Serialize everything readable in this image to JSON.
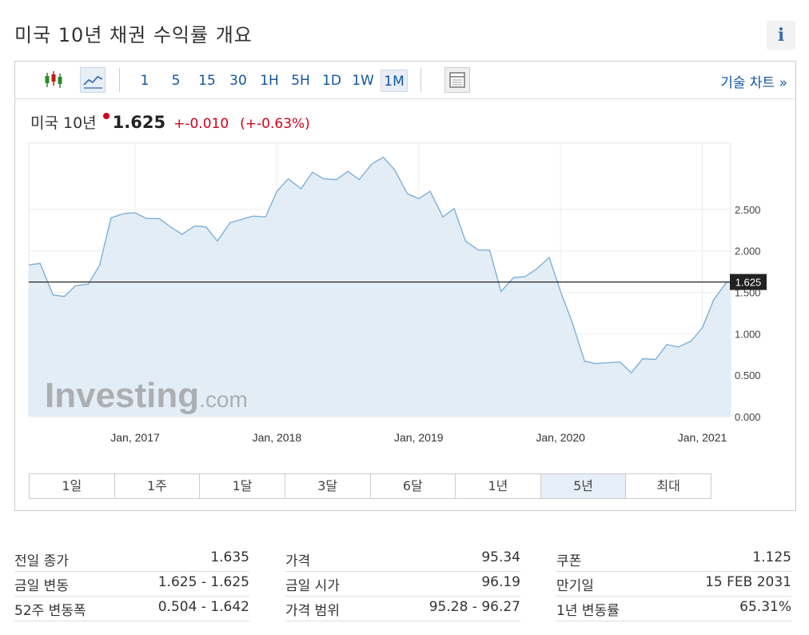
{
  "page": {
    "title": "미국 10년 채권 수익률 개요",
    "info_label": "i"
  },
  "toolbar": {
    "chart_type_icons": [
      "candlestick-icon",
      "area-chart-icon"
    ],
    "intervals": [
      "1",
      "5",
      "15",
      "30",
      "1H",
      "5H",
      "1D",
      "1W",
      "1M"
    ],
    "selected_interval": "1M",
    "layout_icon": "layout-icon",
    "technical_link": "기술 차트 »"
  },
  "quote": {
    "name": "미국 10년",
    "price": "1.625",
    "change": "+-0.010",
    "change_pct": "(+-0.63%)",
    "color_negative": "#d0021b"
  },
  "watermark": {
    "brand": "Investing",
    "suffix": ".com"
  },
  "chart_data": {
    "type": "area",
    "x_tick_labels": [
      "Jan, 2017",
      "Jan, 2018",
      "Jan, 2019",
      "Jan, 2020",
      "Jan, 2021"
    ],
    "x_tick_positions": [
      2017.0,
      2018.0,
      2019.0,
      2020.0,
      2021.0
    ],
    "y_tick_labels": [
      "0.000",
      "0.500",
      "1.000",
      "1.500",
      "2.000",
      "2.500"
    ],
    "y_tick_values": [
      0,
      0.5,
      1.0,
      1.5,
      2.0,
      2.5
    ],
    "ylim": [
      0,
      3.3
    ],
    "xlim": [
      2016.25,
      2021.2
    ],
    "current_price_label": "1.625",
    "current_price": 1.625,
    "line_color": "#7fb0d8",
    "fill_color": "#e3edf6",
    "series": [
      {
        "x": [
          2016.25,
          2016.33,
          2016.42,
          2016.5,
          2016.58,
          2016.67,
          2016.75,
          2016.83,
          2016.92,
          2017.0,
          2017.08,
          2017.17,
          2017.25,
          2017.33,
          2017.42,
          2017.5,
          2017.58,
          2017.67,
          2017.75,
          2017.83,
          2017.92,
          2018.0,
          2018.08,
          2018.17,
          2018.25,
          2018.33,
          2018.42,
          2018.5,
          2018.58,
          2018.67,
          2018.75,
          2018.83,
          2018.92,
          2019.0,
          2019.08,
          2019.17,
          2019.25,
          2019.33,
          2019.42,
          2019.5,
          2019.58,
          2019.67,
          2019.75,
          2019.83,
          2019.92,
          2020.0,
          2020.08,
          2020.17,
          2020.25,
          2020.33,
          2020.42,
          2020.5,
          2020.58,
          2020.67,
          2020.75,
          2020.83,
          2020.92,
          2021.0,
          2021.08,
          2021.17,
          2021.2
        ],
        "y": [
          1.83,
          1.85,
          1.47,
          1.45,
          1.58,
          1.6,
          1.83,
          2.4,
          2.45,
          2.46,
          2.39,
          2.39,
          2.29,
          2.2,
          2.3,
          2.29,
          2.12,
          2.34,
          2.38,
          2.42,
          2.41,
          2.72,
          2.87,
          2.75,
          2.95,
          2.87,
          2.86,
          2.96,
          2.86,
          3.05,
          3.13,
          2.98,
          2.69,
          2.63,
          2.72,
          2.41,
          2.51,
          2.12,
          2.01,
          2.01,
          1.51,
          1.68,
          1.69,
          1.78,
          1.92,
          1.51,
          1.15,
          0.67,
          0.64,
          0.65,
          0.66,
          0.53,
          0.7,
          0.69,
          0.87,
          0.84,
          0.91,
          1.07,
          1.41,
          1.62,
          1.625
        ]
      }
    ]
  },
  "range_tabs": [
    "1일",
    "1주",
    "1달",
    "3달",
    "6달",
    "1년",
    "5년",
    "최대"
  ],
  "selected_range": "5년",
  "stats": {
    "col1": [
      {
        "label": "전일 종가",
        "value": "1.635"
      },
      {
        "label": "금일 변동",
        "value": "1.625 - 1.625"
      },
      {
        "label": "52주 변동폭",
        "value": "0.504 - 1.642"
      }
    ],
    "col2": [
      {
        "label": "가격",
        "value": "95.34"
      },
      {
        "label": "금일 시가",
        "value": "96.19"
      },
      {
        "label": "가격 범위",
        "value": "95.28 - 96.27"
      }
    ],
    "col3": [
      {
        "label": "쿠폰",
        "value": "1.125"
      },
      {
        "label": "만기일",
        "value": "15 FEB 2031"
      },
      {
        "label": "1년 변동률",
        "value": "65.31%"
      }
    ]
  }
}
